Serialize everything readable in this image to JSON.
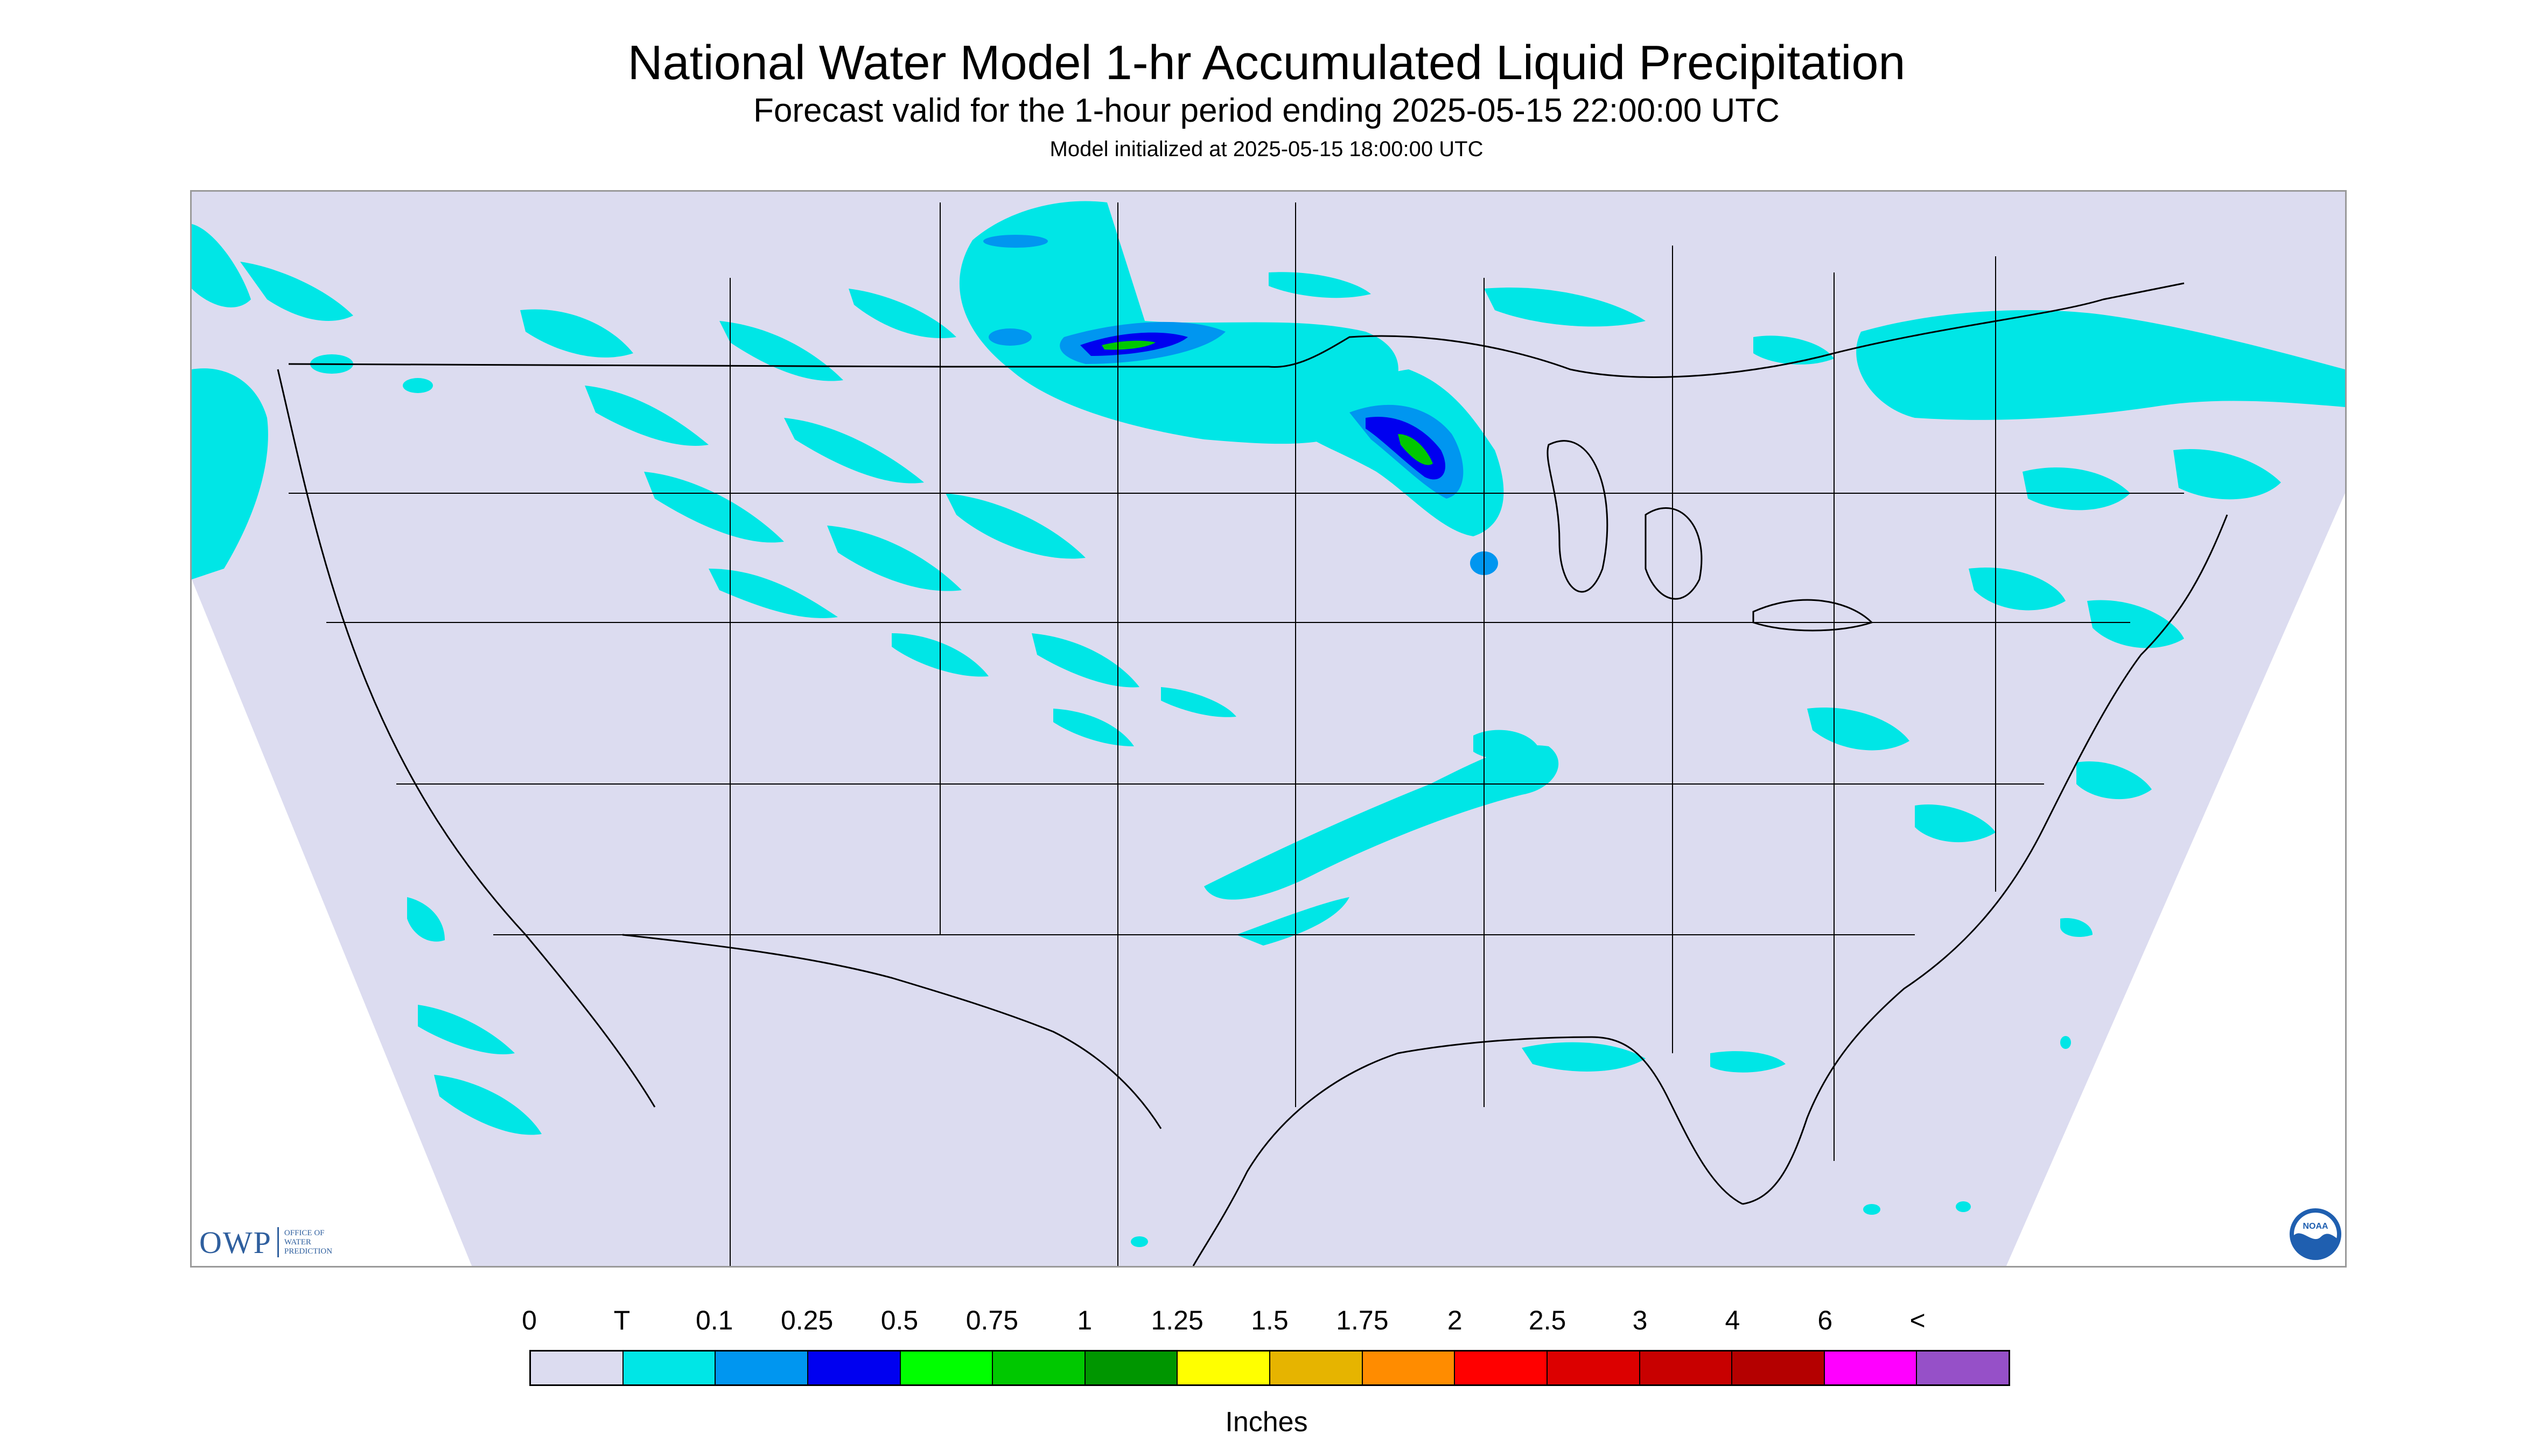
{
  "header": {
    "title": "National Water Model 1-hr Accumulated Liquid Precipitation",
    "subtitle": "Forecast valid for the 1-hour period ending 2025-05-15 22:00:00 UTC",
    "init": "Model initialized at 2025-05-15 18:00:00 UTC"
  },
  "logos": {
    "owp_mark": "OWP",
    "owp_line1": "OFFICE OF",
    "owp_line2": "WATER",
    "owp_line3": "PREDICTION",
    "noaa_text": "NOAA"
  },
  "legend": {
    "labels": [
      "0",
      "T",
      "0.1",
      "0.25",
      "0.5",
      "0.75",
      "1",
      "1.25",
      "1.5",
      "1.75",
      "2",
      "2.5",
      "3",
      "4",
      "6",
      "<"
    ],
    "colors": [
      "#dcdcf0",
      "#00e6e6",
      "#0096f0",
      "#0000f0",
      "#00ff00",
      "#00c800",
      "#009600",
      "#ffff00",
      "#e6b400",
      "#ff8c00",
      "#ff0000",
      "#dc0000",
      "#c80000",
      "#b40000",
      "#ff00ff",
      "#9650c8"
    ],
    "units": "Inches"
  },
  "map": {
    "background_color": "#dcdcf0",
    "precip_trace_color": "#00e6e6",
    "precip_mid_color": "#0096f0",
    "precip_heavy_color": "#0000f0",
    "precip_green_color": "#00c800",
    "boundary_color": "#000000"
  }
}
